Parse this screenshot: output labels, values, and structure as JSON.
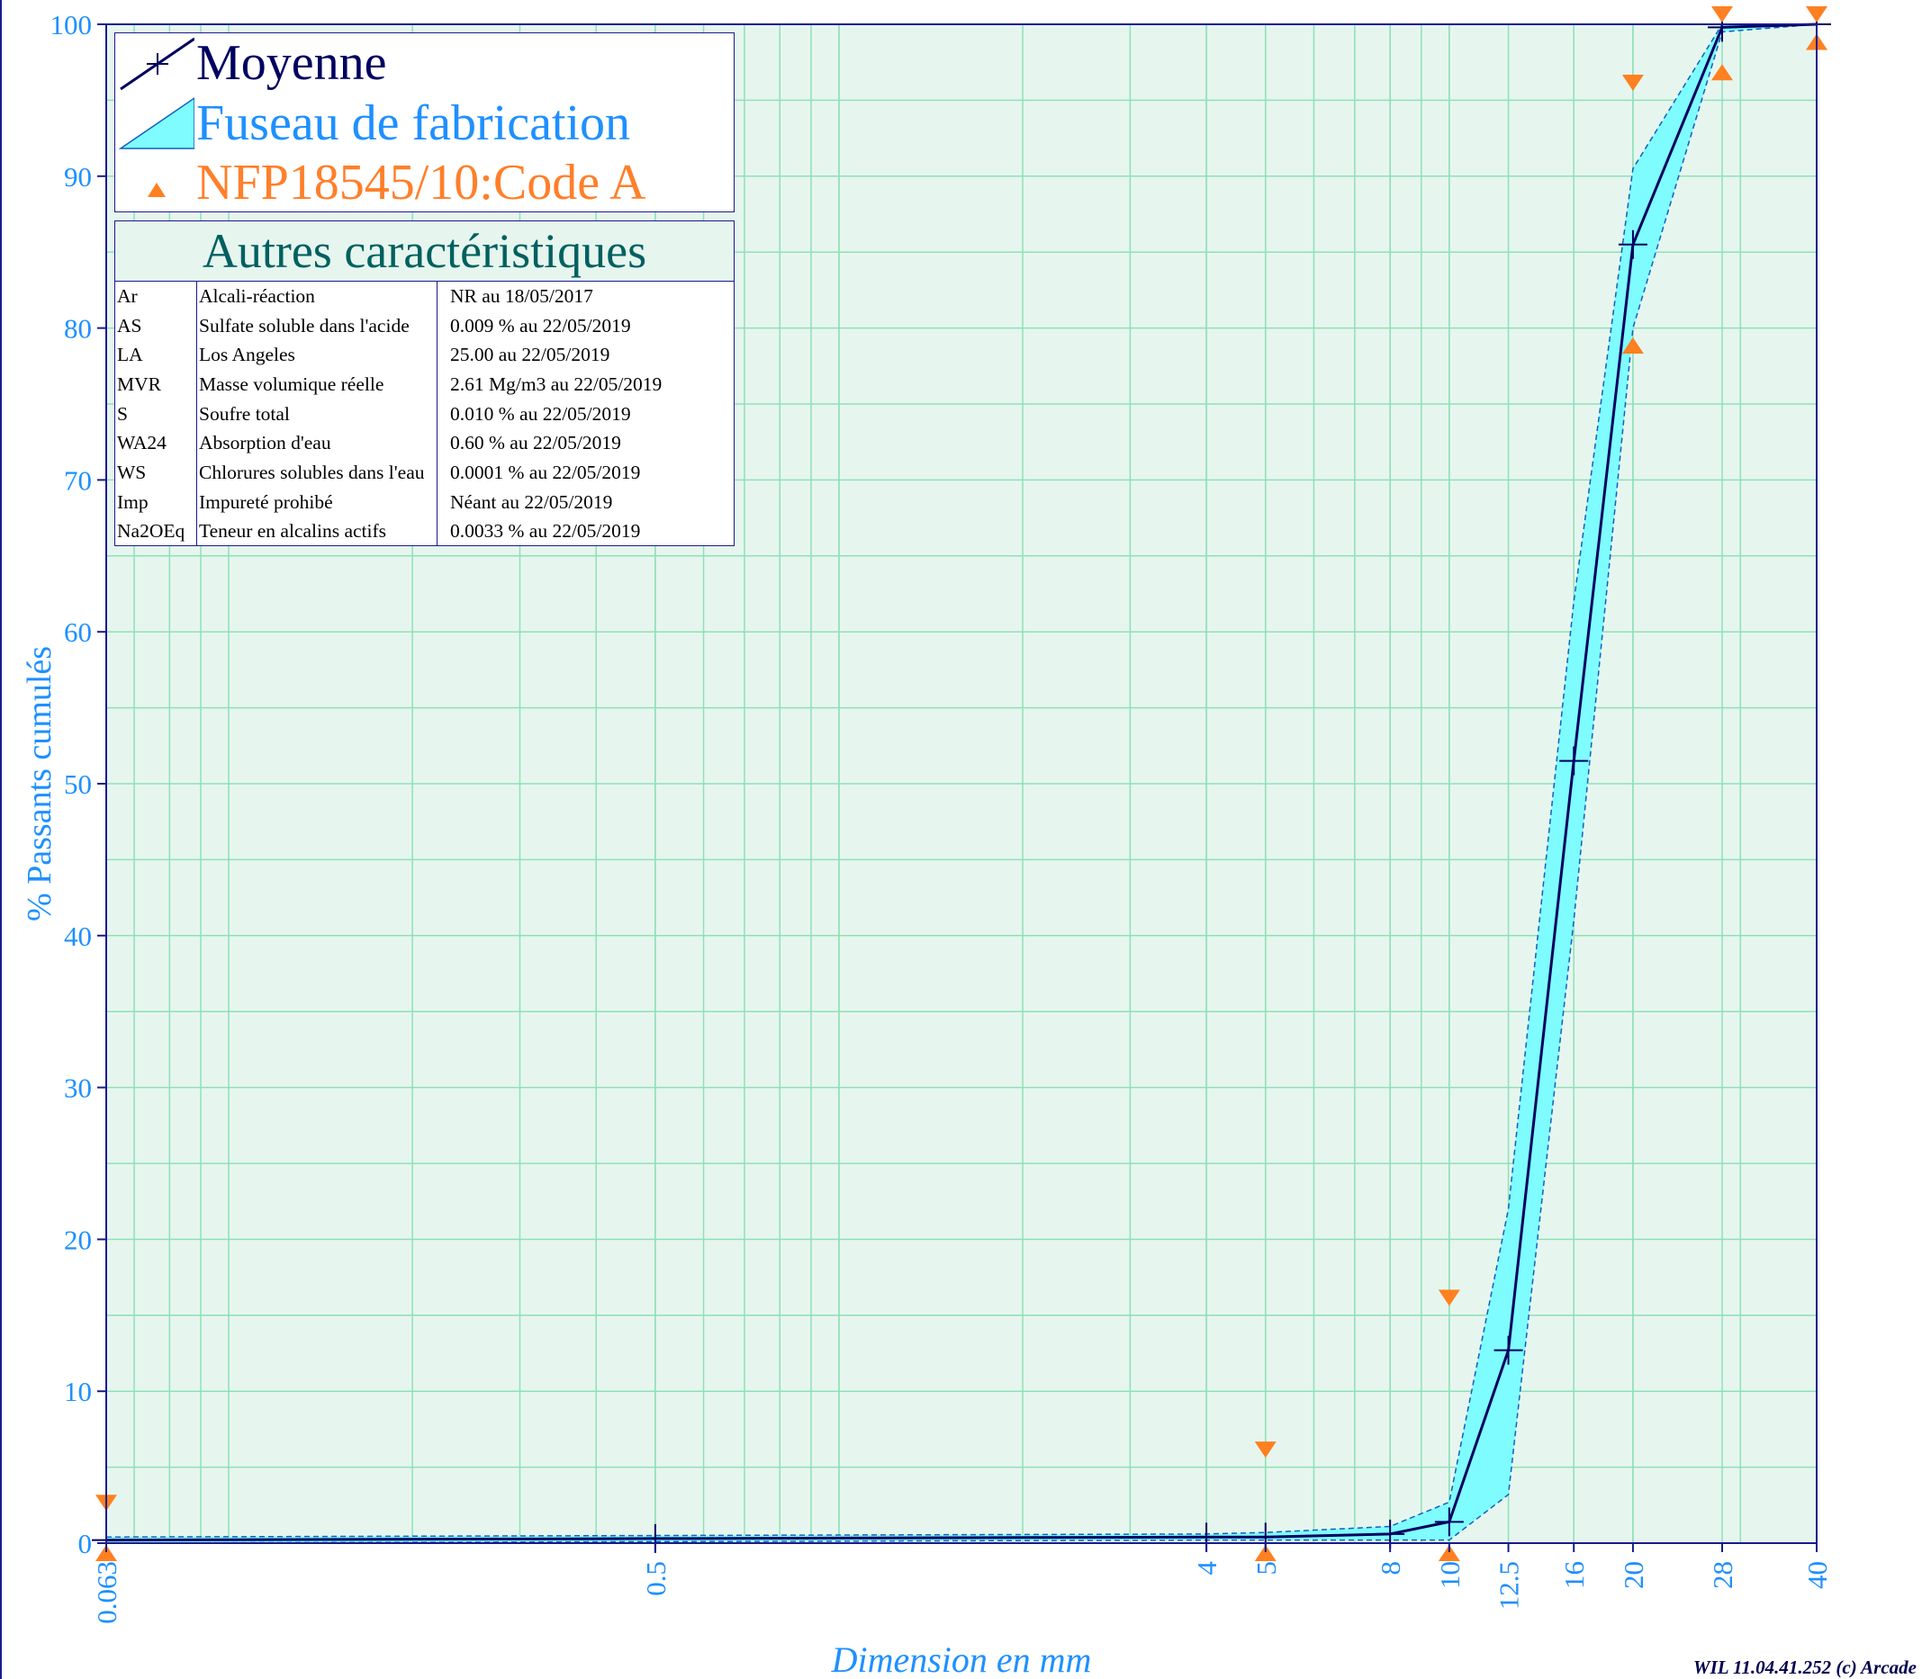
{
  "chart_data": {
    "type": "line",
    "x_scale": "log",
    "xlabel": "Dimension en mm",
    "ylabel": "% Passants cumulés",
    "ylim": [
      0,
      100
    ],
    "xlim": [
      0.063,
      40
    ],
    "y_ticks": [
      0,
      10,
      20,
      30,
      40,
      50,
      60,
      70,
      80,
      90,
      100
    ],
    "x_tick_labels": [
      "0.063",
      "0.5",
      "4",
      "5",
      "8",
      "10",
      "12.5",
      "16",
      "20",
      "28",
      "40"
    ],
    "x_ticks": [
      0.063,
      0.5,
      4,
      5,
      8,
      10,
      12.5,
      16,
      20,
      28,
      40
    ],
    "grid": true,
    "legend_position": "top-left",
    "series": [
      {
        "name": "Moyenne",
        "color": "#000060",
        "marker": "plus",
        "x": [
          0.063,
          0.5,
          4,
          5,
          8,
          10,
          12.5,
          16,
          20,
          28,
          40
        ],
        "y": [
          0.2,
          0.3,
          0.4,
          0.4,
          0.6,
          1.4,
          12.7,
          51.5,
          85.5,
          99.8,
          100
        ]
      },
      {
        "name": "Fuseau de fabrication",
        "type": "band",
        "color": "#00e5f0",
        "x": [
          0.063,
          0.5,
          4,
          5,
          8,
          10,
          12.5,
          16,
          20,
          28,
          40
        ],
        "lower": [
          0,
          0.1,
          0.2,
          0.2,
          0.2,
          0.2,
          3.2,
          41,
          80,
          99.5,
          100
        ],
        "upper": [
          0.4,
          0.5,
          0.6,
          0.7,
          1.1,
          2.7,
          22,
          62,
          90.5,
          100,
          100
        ]
      },
      {
        "name": "NFP18545/10:Code A",
        "color": "#ff8020",
        "marker": "triangles",
        "upper_points": [
          {
            "x": 0.063,
            "y": 2
          },
          {
            "x": 5,
            "y": 5.5
          },
          {
            "x": 10,
            "y": 15.5
          },
          {
            "x": 20,
            "y": 95.5
          },
          {
            "x": 28,
            "y": 100
          },
          {
            "x": 40,
            "y": 100
          }
        ],
        "lower_points": [
          {
            "x": 0.063,
            "y": 0
          },
          {
            "x": 5,
            "y": 0
          },
          {
            "x": 10,
            "y": 0
          },
          {
            "x": 20,
            "y": 79.5
          },
          {
            "x": 28,
            "y": 97.5
          },
          {
            "x": 40,
            "y": 99.5
          }
        ]
      }
    ]
  },
  "legend": {
    "items": [
      {
        "label": "Moyenne",
        "color": "#000060"
      },
      {
        "label": "Fuseau de fabrication",
        "color": "#1e90ff"
      },
      {
        "label": "NFP18545/10:Code A",
        "color": "#ff7f2a"
      }
    ]
  },
  "properties": {
    "title": "Autres caractéristiques",
    "rows": [
      {
        "code": "Ar",
        "name": "Alcali-réaction",
        "value": "NR  au 18/05/2017"
      },
      {
        "code": "AS",
        "name": "Sulfate soluble dans l'acide",
        "value": "0.009 %  au 22/05/2019"
      },
      {
        "code": "LA",
        "name": "Los Angeles",
        "value": "25.00   au 22/05/2019"
      },
      {
        "code": "MVR",
        "name": "Masse volumique réelle",
        "value": "2.61 Mg/m3  au 22/05/2019"
      },
      {
        "code": "S",
        "name": "Soufre total",
        "value": "0.010 %  au 22/05/2019"
      },
      {
        "code": "WA24",
        "name": "Absorption d'eau",
        "value": "0.60 %  au 22/05/2019"
      },
      {
        "code": "WS",
        "name": "Chlorures solubles dans l'eau",
        "value": "0.0001 %  au 22/05/2019"
      },
      {
        "code": "Imp",
        "name": "Impureté prohibé",
        "value": "Néant  au 22/05/2019"
      },
      {
        "code": "Na2OEq",
        "name": "Teneur en alcalins actifs",
        "value": "0.0033 %  au 22/05/2019"
      }
    ]
  },
  "footer": "WIL 11.04.41.252 (c) Arcade",
  "colors": {
    "plot_bg": "#e6f6ee",
    "grid": "#8fe0b8",
    "frame": "#1a1a8c",
    "axis_text": "#1e90ff",
    "band_fill": "#7ffcff",
    "band_edge": "#1060c0"
  }
}
